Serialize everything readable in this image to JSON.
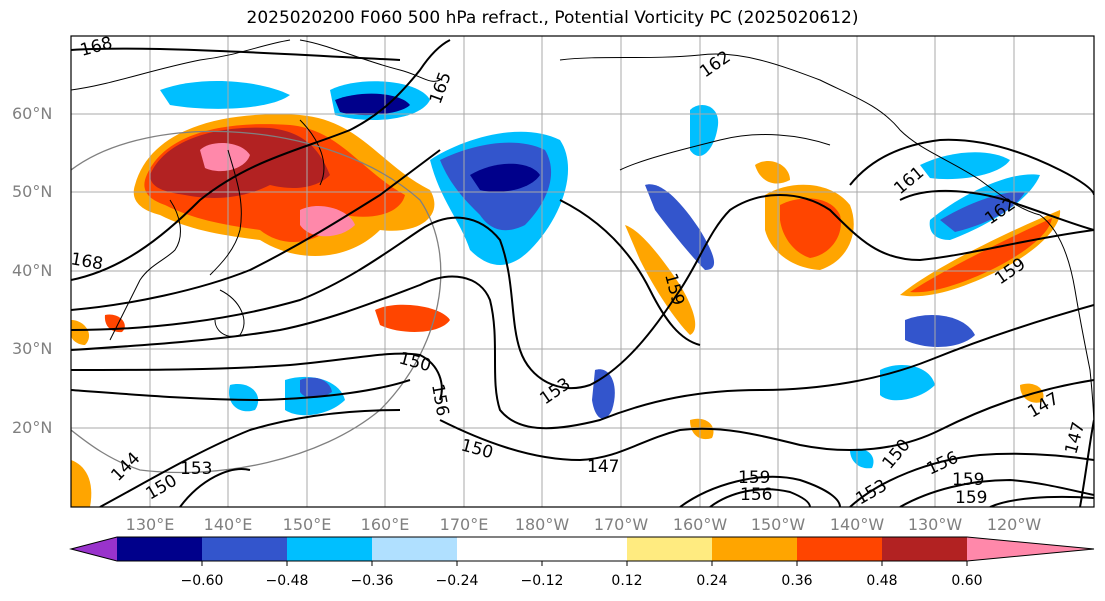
{
  "title": "2025020200 F060 500 hPa refract., Potential Vorticity PC (2025020612)",
  "map": {
    "lat_labels": [
      "60°N",
      "50°N",
      "40°N",
      "30°N",
      "20°N"
    ],
    "lon_labels": [
      "130°E",
      "140°E",
      "150°E",
      "160°E",
      "170°E",
      "180°W",
      "170°W",
      "160°W",
      "150°W",
      "140°W",
      "130°W",
      "120°W"
    ],
    "contour_labels": [
      "168",
      "165",
      "162",
      "168",
      "161",
      "162",
      "159",
      "159",
      "150",
      "156",
      "153",
      "150",
      "147",
      "144",
      "153",
      "150",
      "159",
      "156",
      "150",
      "156",
      "159",
      "153",
      "159",
      "147",
      "147"
    ]
  },
  "colorbar": {
    "tick_labels": [
      "−0.60",
      "−0.48",
      "−0.36",
      "−0.24",
      "−0.12",
      "0.12",
      "0.24",
      "0.36",
      "0.48",
      "0.60"
    ],
    "colors": [
      "#9933cc",
      "#00008b",
      "#3355cc",
      "#00bfff",
      "#b0e0ff",
      "#ffffff",
      "#ffeb80",
      "#ffa500",
      "#ff4500",
      "#b22222",
      "#ff88aa"
    ]
  }
}
